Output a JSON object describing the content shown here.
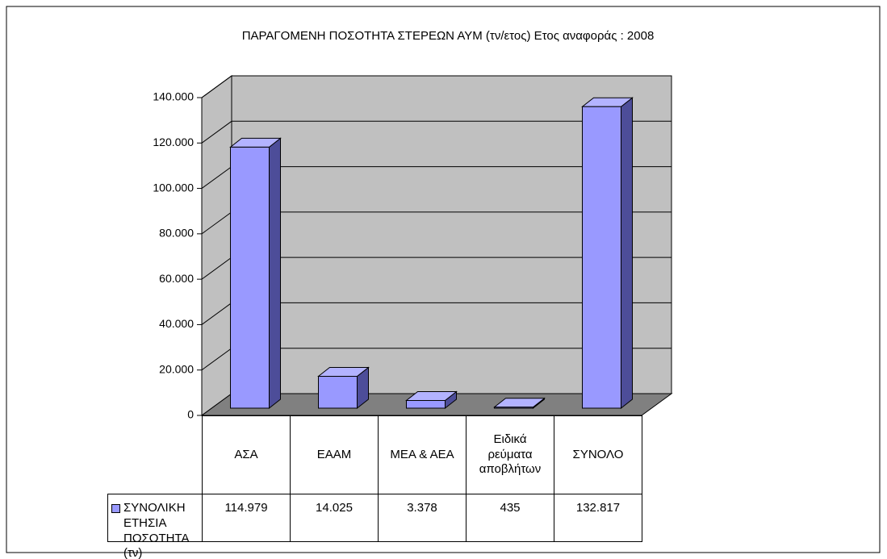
{
  "chart_data": {
    "type": "bar3d",
    "title": "ΠΑΡΑΓΟΜΕΝΗ ΠΟΣΟΤΗΤΑ ΣΤΕΡΕΩΝ ΑΥΜ  (τν/ετος) Ετος αναφοράς : 2008",
    "categories": [
      "ΑΣΑ",
      "ΕΑΑΜ",
      "ΜΕΑ & ΑΕΑ",
      "Ειδικά ρεύματα αποβλήτων",
      "ΣΥΝΟΛΟ"
    ],
    "series": [
      {
        "name": "ΣΥΝΟΛΙΚΗ ΕΤΗΣΙΑ ΠΟΣΟΤΗΤΑ (τν)",
        "color": "#9999ff",
        "values": [
          114979,
          14025,
          3378,
          435,
          132817
        ],
        "value_labels": [
          "114.979",
          "14.025",
          "3.378",
          "435",
          "132.817"
        ]
      }
    ],
    "ylim": [
      0,
      140000
    ],
    "yticks": [
      0,
      {
        "value": 20000,
        "label": "20.000"
      },
      {
        "value": 40000,
        "label": "40.000"
      },
      {
        "value": 60000,
        "label": "60.000"
      },
      {
        "value": 80000,
        "label": "80.000"
      },
      {
        "value": 100000,
        "label": "100.000"
      },
      {
        "value": 120000,
        "label": "120.000"
      },
      {
        "value": 140000,
        "label": "140.000"
      }
    ],
    "grid": true
  }
}
